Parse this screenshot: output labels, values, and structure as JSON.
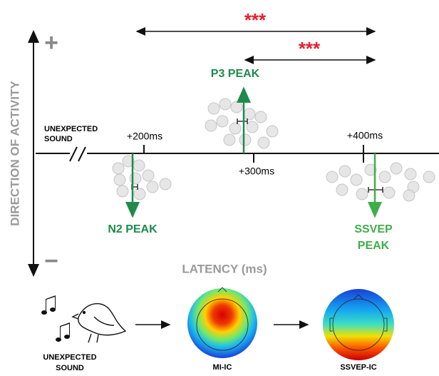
{
  "axes": {
    "y_label": "DIRECTION OF ACTIVITY",
    "plus": "+",
    "minus": "−",
    "x_label": "LATENCY (ms)",
    "origin_lines": [
      "UNEXPECTED",
      "SOUND"
    ]
  },
  "ticks": [
    "+200ms",
    "+300ms",
    "+400ms"
  ],
  "peaks": {
    "n2": [
      "N2 PEAK"
    ],
    "p3": [
      "P3 PEAK"
    ],
    "ssvep": [
      "SSVEP",
      "PEAK"
    ]
  },
  "significance": [
    "***",
    "***"
  ],
  "pipeline": {
    "sound": [
      "UNEXPECTED",
      "SOUND"
    ],
    "map1": "MI-IC",
    "map2": "SSVEP-IC"
  }
}
